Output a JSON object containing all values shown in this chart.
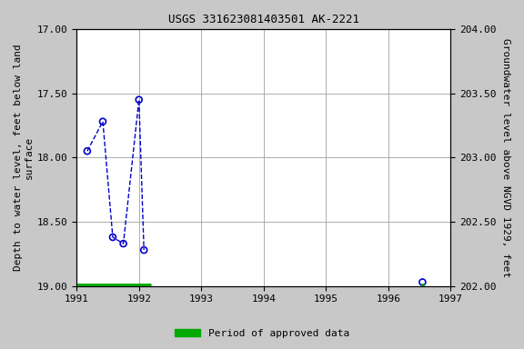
{
  "title": "USGS 331623081403501 AK-2221",
  "x_connected": [
    1991.17,
    1991.42,
    1991.58,
    1991.75,
    1992.0,
    1992.08
  ],
  "y_connected": [
    17.95,
    17.72,
    18.62,
    18.67,
    17.55,
    18.72
  ],
  "x_isolated": [
    1996.55
  ],
  "y_isolated": [
    18.97
  ],
  "xlim": [
    1991,
    1997
  ],
  "ylim": [
    19.0,
    17.0
  ],
  "ylim_right": [
    202.0,
    204.0
  ],
  "yticks_left": [
    17.0,
    17.5,
    18.0,
    18.5,
    19.0
  ],
  "yticks_right": [
    202.0,
    202.5,
    203.0,
    203.5,
    204.0
  ],
  "xticks": [
    1991,
    1992,
    1993,
    1994,
    1995,
    1996,
    1997
  ],
  "ylabel_left": "Depth to water level, feet below land\nsurface",
  "ylabel_right": "Groundwater level above NGVD 1929, feet",
  "line_color": "#0000cc",
  "marker_color": "#0000cc",
  "approved_bar_xstart": 1991.0,
  "approved_bar_xend": 1992.2,
  "approved_bar_y": 19.0,
  "approved_bar_color": "#00aa00",
  "background_color": "#c8c8c8",
  "plot_bg_color": "#ffffff",
  "grid_color": "#a0a0a0",
  "font_family": "monospace",
  "figsize": [
    5.76,
    3.84
  ],
  "dpi": 100
}
